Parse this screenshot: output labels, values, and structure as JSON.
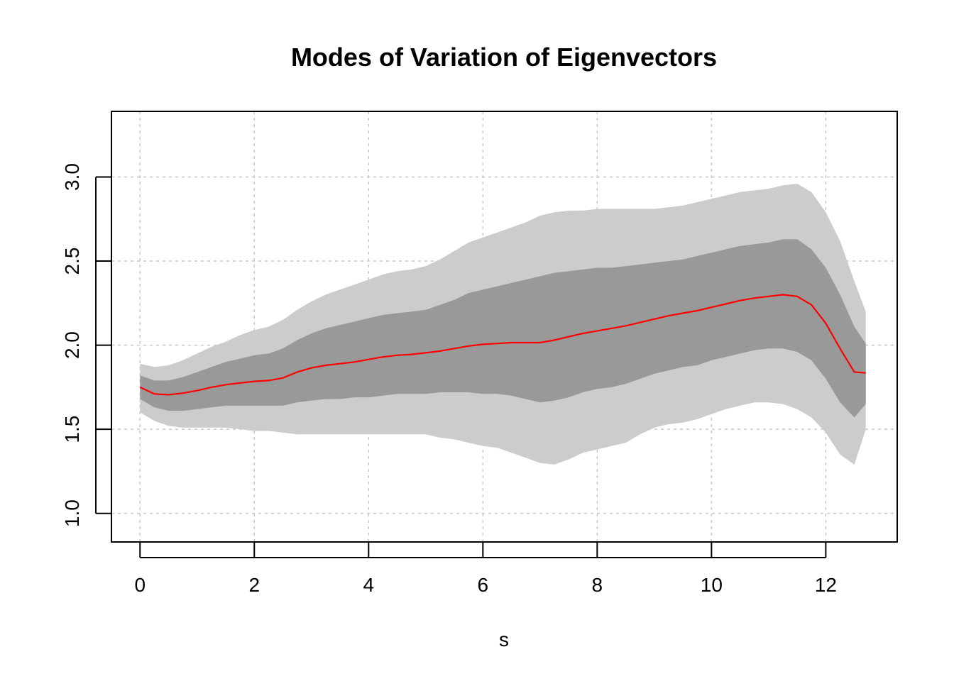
{
  "chart_data": {
    "type": "area",
    "title": "Modes of Variation of Eigenvectors",
    "xlabel": "s",
    "ylabel": "",
    "xlim": [
      -0.5,
      13.25
    ],
    "ylim": [
      0.83,
      3.39
    ],
    "xticks": [
      0,
      2,
      4,
      6,
      8,
      10,
      12
    ],
    "yticks": [
      1.0,
      1.5,
      2.0,
      2.5,
      3.0
    ],
    "grid": true,
    "colors": {
      "outer_band": "#cccccc",
      "inner_band": "#999999",
      "mean_line": "#ff0000",
      "grid": "#c8c8c8"
    },
    "x": [
      0,
      0.25,
      0.5,
      0.75,
      1.0,
      1.25,
      1.5,
      1.75,
      2.0,
      2.25,
      2.5,
      2.75,
      3.0,
      3.25,
      3.5,
      3.75,
      4.0,
      4.25,
      4.5,
      4.75,
      5.0,
      5.25,
      5.5,
      5.75,
      6.0,
      6.25,
      6.5,
      6.75,
      7.0,
      7.25,
      7.5,
      7.75,
      8.0,
      8.25,
      8.5,
      8.75,
      9.0,
      9.25,
      9.5,
      9.75,
      10.0,
      10.25,
      10.5,
      10.75,
      11.0,
      11.25,
      11.5,
      11.75,
      12.0,
      12.25,
      12.5,
      12.7
    ],
    "series": [
      {
        "role": "outer_upper",
        "values": [
          1.89,
          1.87,
          1.88,
          1.91,
          1.95,
          1.99,
          2.02,
          2.06,
          2.09,
          2.11,
          2.15,
          2.21,
          2.26,
          2.3,
          2.33,
          2.36,
          2.39,
          2.42,
          2.44,
          2.45,
          2.47,
          2.51,
          2.56,
          2.61,
          2.64,
          2.67,
          2.7,
          2.73,
          2.77,
          2.79,
          2.8,
          2.8,
          2.81,
          2.81,
          2.81,
          2.81,
          2.81,
          2.82,
          2.83,
          2.85,
          2.87,
          2.89,
          2.91,
          2.92,
          2.93,
          2.95,
          2.96,
          2.91,
          2.79,
          2.62,
          2.38,
          2.2
        ]
      },
      {
        "role": "inner_upper",
        "values": [
          1.82,
          1.79,
          1.79,
          1.81,
          1.84,
          1.87,
          1.9,
          1.92,
          1.94,
          1.95,
          1.98,
          2.03,
          2.07,
          2.1,
          2.12,
          2.14,
          2.16,
          2.18,
          2.19,
          2.2,
          2.21,
          2.24,
          2.27,
          2.31,
          2.33,
          2.35,
          2.37,
          2.39,
          2.41,
          2.43,
          2.44,
          2.45,
          2.46,
          2.46,
          2.47,
          2.48,
          2.49,
          2.5,
          2.51,
          2.53,
          2.55,
          2.57,
          2.59,
          2.6,
          2.61,
          2.63,
          2.63,
          2.57,
          2.46,
          2.3,
          2.11,
          2.01
        ]
      },
      {
        "role": "mean",
        "values": [
          1.75,
          1.71,
          1.705,
          1.715,
          1.73,
          1.75,
          1.765,
          1.775,
          1.785,
          1.79,
          1.805,
          1.84,
          1.865,
          1.88,
          1.89,
          1.9,
          1.915,
          1.93,
          1.94,
          1.945,
          1.955,
          1.965,
          1.98,
          1.995,
          2.005,
          2.01,
          2.015,
          2.015,
          2.015,
          2.03,
          2.05,
          2.07,
          2.085,
          2.1,
          2.115,
          2.135,
          2.155,
          2.175,
          2.19,
          2.205,
          2.225,
          2.245,
          2.265,
          2.28,
          2.29,
          2.3,
          2.29,
          2.24,
          2.13,
          1.98,
          1.84,
          1.835
        ]
      },
      {
        "role": "inner_lower",
        "values": [
          1.68,
          1.63,
          1.61,
          1.61,
          1.62,
          1.63,
          1.64,
          1.64,
          1.64,
          1.64,
          1.64,
          1.66,
          1.67,
          1.68,
          1.68,
          1.69,
          1.69,
          1.7,
          1.71,
          1.71,
          1.71,
          1.72,
          1.72,
          1.72,
          1.71,
          1.71,
          1.7,
          1.68,
          1.66,
          1.67,
          1.69,
          1.72,
          1.74,
          1.75,
          1.77,
          1.8,
          1.83,
          1.85,
          1.87,
          1.88,
          1.91,
          1.93,
          1.95,
          1.97,
          1.98,
          1.98,
          1.96,
          1.91,
          1.8,
          1.66,
          1.57,
          1.65
        ]
      },
      {
        "role": "outer_lower",
        "values": [
          1.6,
          1.55,
          1.52,
          1.51,
          1.51,
          1.51,
          1.51,
          1.5,
          1.49,
          1.49,
          1.48,
          1.47,
          1.47,
          1.47,
          1.47,
          1.47,
          1.47,
          1.47,
          1.47,
          1.47,
          1.47,
          1.45,
          1.44,
          1.42,
          1.4,
          1.39,
          1.36,
          1.33,
          1.3,
          1.29,
          1.32,
          1.36,
          1.38,
          1.4,
          1.42,
          1.47,
          1.51,
          1.53,
          1.54,
          1.56,
          1.59,
          1.62,
          1.64,
          1.66,
          1.66,
          1.65,
          1.62,
          1.57,
          1.48,
          1.35,
          1.29,
          1.5
        ]
      }
    ]
  }
}
